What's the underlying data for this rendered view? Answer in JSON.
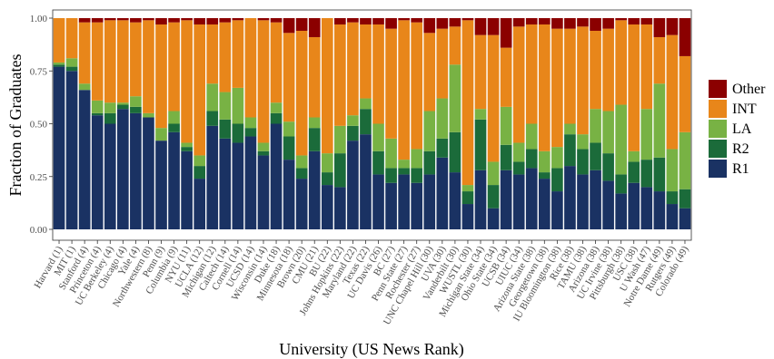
{
  "chart_data": {
    "type": "bar",
    "stacked": true,
    "xlabel": "University (US News Rank)",
    "ylabel": "Fraction of Graduates",
    "ylim": [
      0,
      1
    ],
    "yticks": [
      "0.00",
      "0.25",
      "0.50",
      "0.75",
      "1.00"
    ],
    "ytick_values": [
      0,
      0.25,
      0.5,
      0.75,
      1.0
    ],
    "legend_position": "right",
    "categories": [
      "Harvard (1)",
      "MIT (1)",
      "Stanford (4)",
      "Princeton (4)",
      "UC Berkeley (4)",
      "Chicago (4)",
      "Yale (4)",
      "Northwestern (8)",
      "Penn (9)",
      "Columbia (9)",
      "NYU (11)",
      "UCLA (12)",
      "Michigan (12)",
      "Caltech (14)",
      "Cornell (14)",
      "UCSD (14)",
      "Wisconsin (14)",
      "Duke (18)",
      "Minnesota (18)",
      "Brown (20)",
      "CMU (21)",
      "BU (22)",
      "Johns Hopkins (22)",
      "Maryland (22)",
      "Texas (22)",
      "UC Davis (26)",
      "BC (27)",
      "Penn State (27)",
      "Rochester (27)",
      "UNC Chapel Hill (30)",
      "UVA (30)",
      "Vanderbilt (30)",
      "WUSTL (30)",
      "Michigan State (34)",
      "Ohio State (34)",
      "UCSB (34)",
      "UIUC (34)",
      "Arizona State (38)",
      "Georgetown (38)",
      "IU Bloomington (38)",
      "Rice (38)",
      "TAMU (38)",
      "Arizona (38)",
      "UC Irvine (38)",
      "Pittsburgh (38)",
      "USC (38)",
      "U Wash (47)",
      "Notre Dame (49)",
      "Rutgers (49)",
      "Colorado (49)"
    ],
    "series": [
      {
        "name": "R1",
        "color": "#1a3263",
        "values": [
          0.77,
          0.75,
          0.66,
          0.54,
          0.5,
          0.57,
          0.55,
          0.53,
          0.42,
          0.46,
          0.37,
          0.24,
          0.49,
          0.43,
          0.41,
          0.44,
          0.35,
          0.5,
          0.33,
          0.24,
          0.37,
          0.21,
          0.2,
          0.42,
          0.45,
          0.26,
          0.22,
          0.26,
          0.22,
          0.26,
          0.34,
          0.27,
          0.12,
          0.28,
          0.1,
          0.28,
          0.26,
          0.29,
          0.24,
          0.18,
          0.3,
          0.26,
          0.28,
          0.23,
          0.17,
          0.22,
          0.2,
          0.18,
          0.12,
          0.1
        ]
      },
      {
        "name": "R2",
        "color": "#1b6b3a",
        "values": [
          0.01,
          0.02,
          0.0,
          0.01,
          0.05,
          0.02,
          0.03,
          0.0,
          0.0,
          0.04,
          0.02,
          0.06,
          0.07,
          0.09,
          0.09,
          0.04,
          0.02,
          0.05,
          0.11,
          0.05,
          0.11,
          0.06,
          0.16,
          0.07,
          0.12,
          0.11,
          0.07,
          0.03,
          0.07,
          0.11,
          0.09,
          0.19,
          0.06,
          0.24,
          0.11,
          0.12,
          0.06,
          0.09,
          0.03,
          0.11,
          0.15,
          0.12,
          0.13,
          0.13,
          0.09,
          0.1,
          0.13,
          0.16,
          0.06,
          0.09
        ]
      },
      {
        "name": "LA",
        "color": "#78b244",
        "values": [
          0.01,
          0.04,
          0.03,
          0.06,
          0.05,
          0.01,
          0.05,
          0.02,
          0.06,
          0.06,
          0.02,
          0.05,
          0.13,
          0.13,
          0.17,
          0.05,
          0.04,
          0.05,
          0.07,
          0.06,
          0.05,
          0.09,
          0.13,
          0.05,
          0.05,
          0.13,
          0.14,
          0.04,
          0.09,
          0.19,
          0.19,
          0.32,
          0.03,
          0.05,
          0.11,
          0.18,
          0.09,
          0.12,
          0.1,
          0.1,
          0.05,
          0.07,
          0.16,
          0.2,
          0.33,
          0.05,
          0.24,
          0.35,
          0.2,
          0.27
        ]
      },
      {
        "name": "INT",
        "color": "#e8861a",
        "values": [
          0.21,
          0.19,
          0.29,
          0.37,
          0.39,
          0.39,
          0.35,
          0.44,
          0.49,
          0.42,
          0.58,
          0.62,
          0.28,
          0.33,
          0.32,
          0.47,
          0.58,
          0.38,
          0.42,
          0.59,
          0.38,
          0.64,
          0.48,
          0.44,
          0.35,
          0.47,
          0.52,
          0.66,
          0.6,
          0.37,
          0.33,
          0.18,
          0.78,
          0.35,
          0.6,
          0.28,
          0.55,
          0.47,
          0.6,
          0.56,
          0.45,
          0.51,
          0.37,
          0.39,
          0.4,
          0.6,
          0.4,
          0.22,
          0.54,
          0.36
        ]
      },
      {
        "name": "Other",
        "color": "#8b0000",
        "values": [
          0.0,
          0.0,
          0.02,
          0.02,
          0.01,
          0.01,
          0.02,
          0.01,
          0.03,
          0.02,
          0.01,
          0.03,
          0.03,
          0.02,
          0.01,
          0.0,
          0.01,
          0.02,
          0.07,
          0.06,
          0.09,
          0.0,
          0.03,
          0.02,
          0.03,
          0.03,
          0.05,
          0.01,
          0.02,
          0.07,
          0.05,
          0.04,
          0.01,
          0.08,
          0.08,
          0.14,
          0.04,
          0.03,
          0.03,
          0.05,
          0.05,
          0.04,
          0.06,
          0.05,
          0.01,
          0.03,
          0.03,
          0.09,
          0.08,
          0.18
        ]
      }
    ],
    "legend_order": [
      "Other",
      "INT",
      "LA",
      "R2",
      "R1"
    ]
  }
}
